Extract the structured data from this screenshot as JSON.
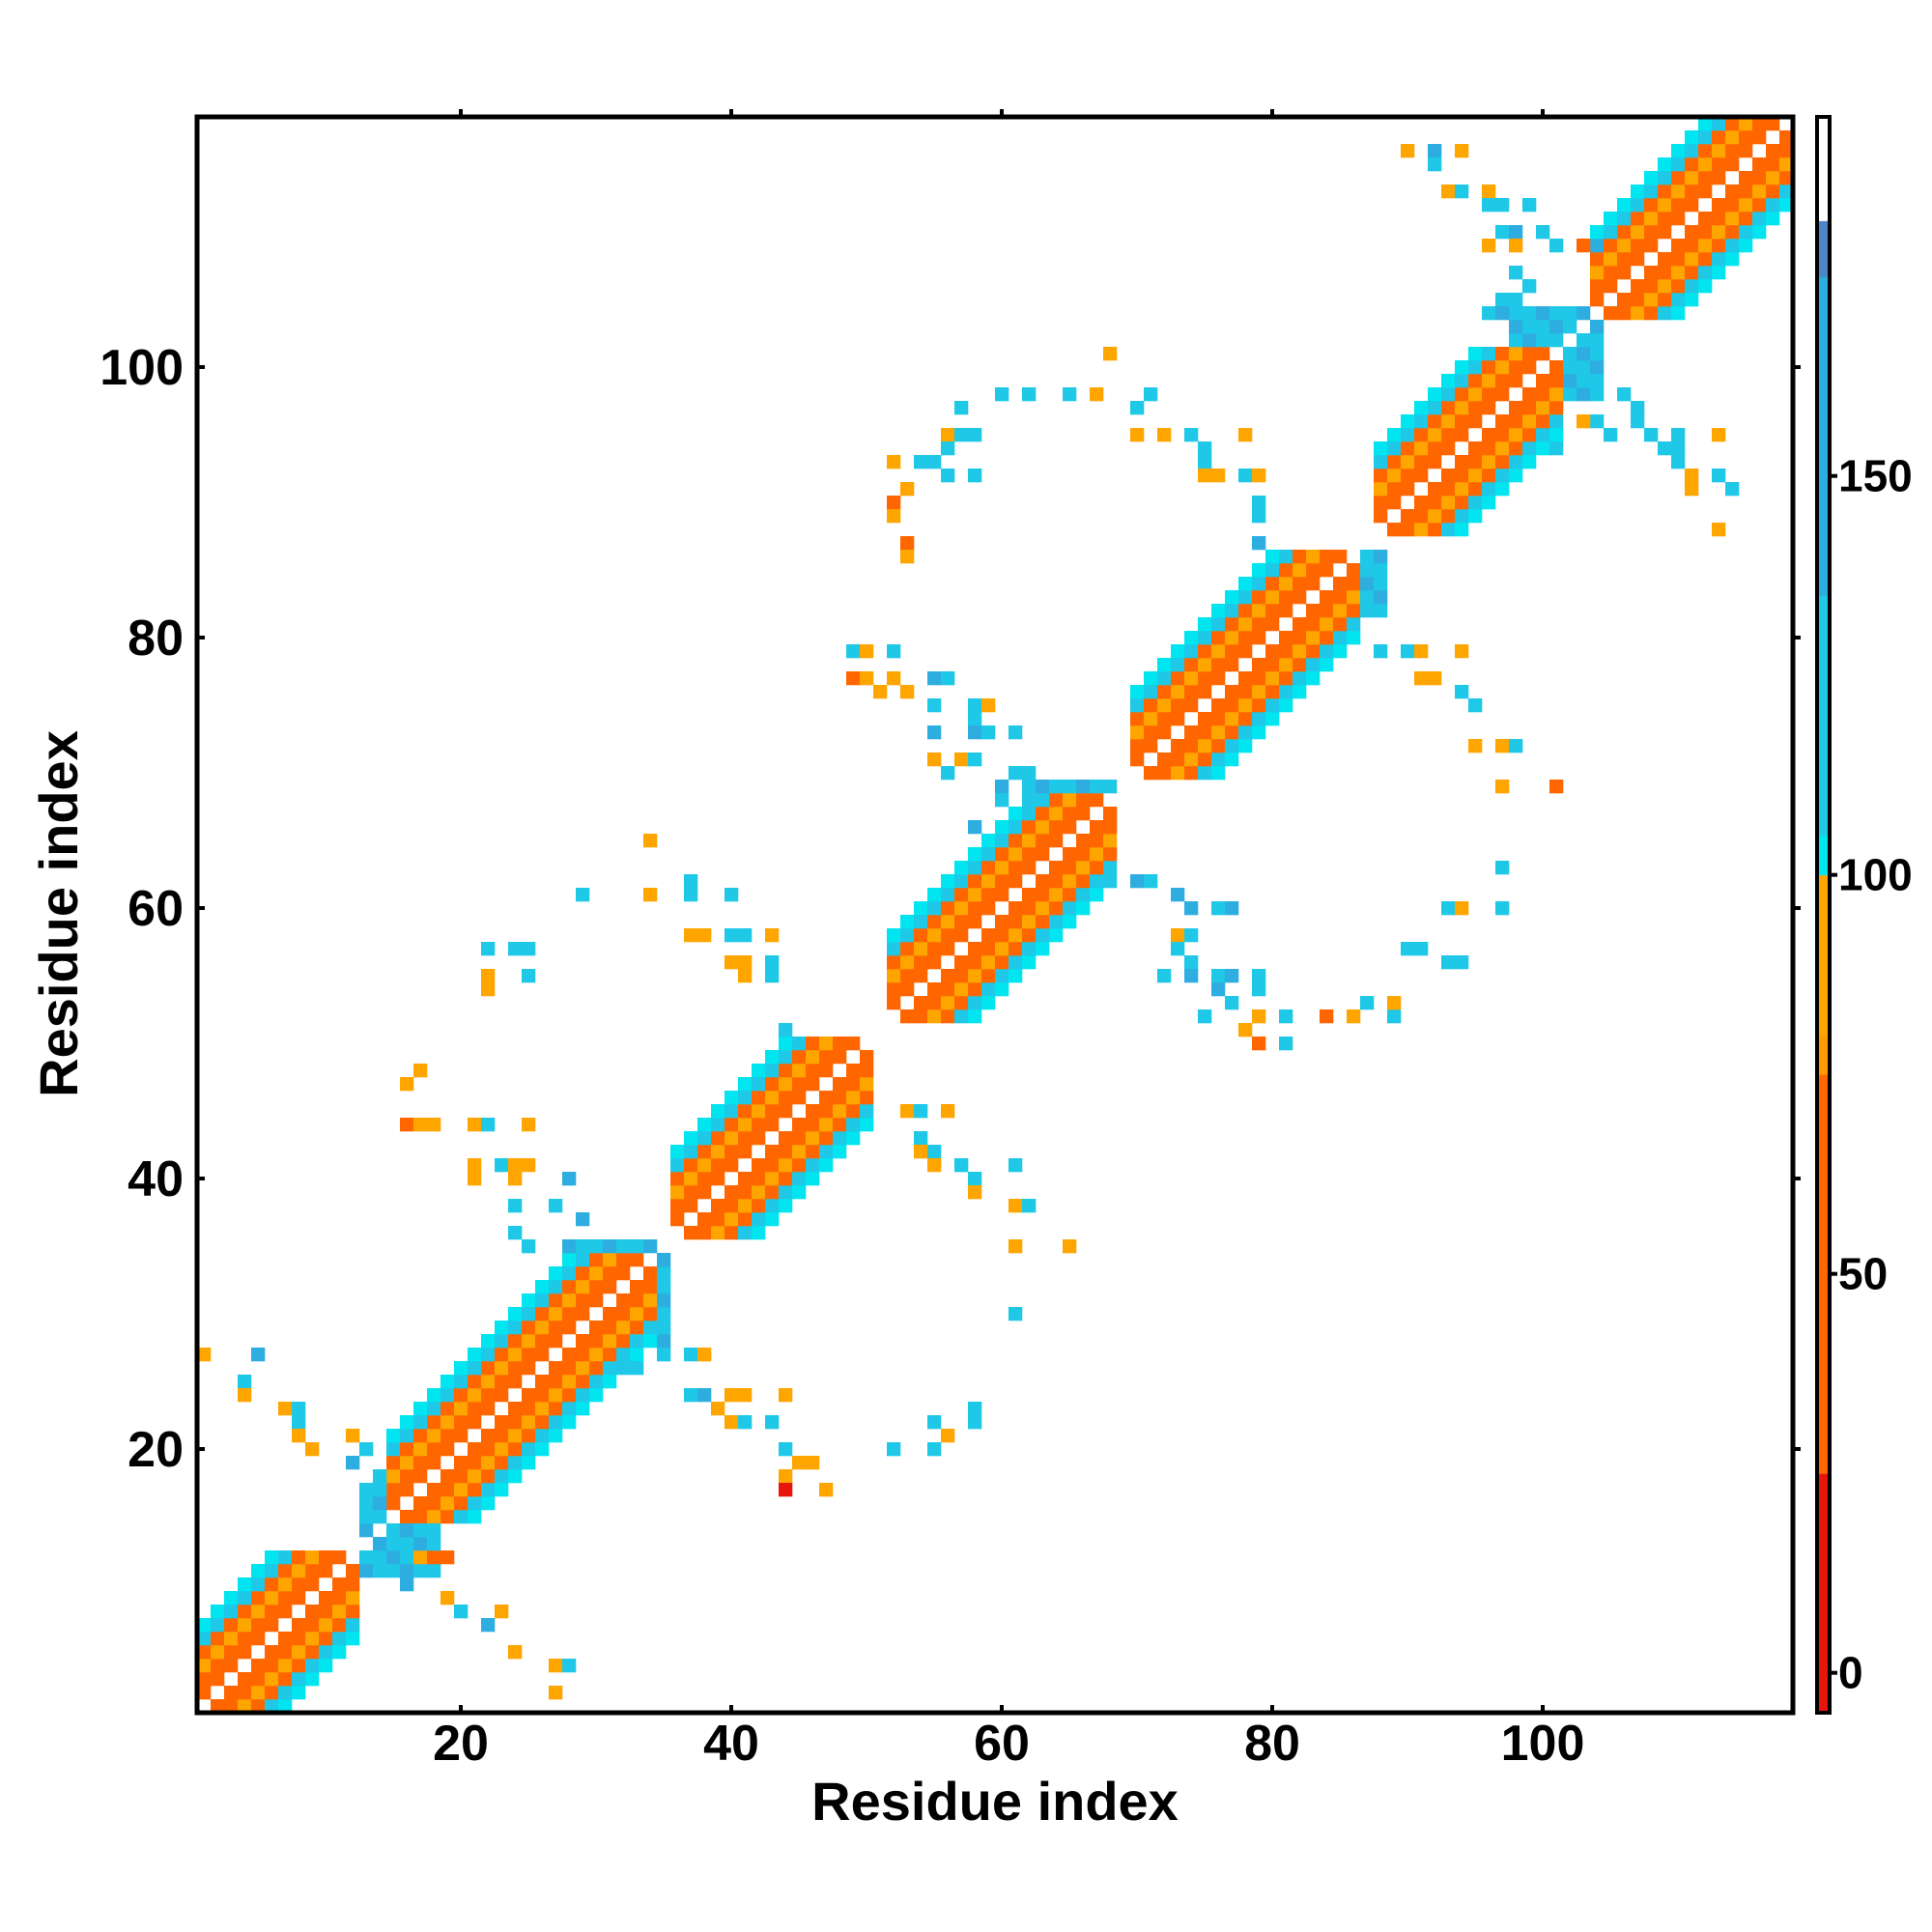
{
  "chart_data": {
    "type": "heatmap",
    "title": "",
    "xlabel": "Residue index",
    "ylabel": "Residue index",
    "xlim": [
      1,
      118
    ],
    "ylim": [
      1,
      118
    ],
    "x_ticks": [
      20,
      40,
      60,
      80,
      100
    ],
    "y_ticks": [
      20,
      40,
      60,
      80,
      100
    ],
    "x_tick_labels": [
      "20",
      "40",
      "60",
      "80",
      "100"
    ],
    "y_tick_labels": [
      "20",
      "40",
      "60",
      "80",
      "100"
    ],
    "grid": false,
    "colorbar": {
      "ticks": [
        0,
        50,
        100,
        150
      ],
      "tick_labels": [
        "0",
        "50",
        "100",
        "150"
      ],
      "range": [
        -5,
        195
      ],
      "bands": [
        {
          "from": -5,
          "to": 25,
          "color": "#e8150a"
        },
        {
          "from": 25,
          "to": 75,
          "color": "#ff6600"
        },
        {
          "from": 75,
          "to": 80,
          "color": "#ff9900"
        },
        {
          "from": 80,
          "to": 100,
          "color": "#ffa500"
        },
        {
          "from": 100,
          "to": 105,
          "color": "#00e5f0"
        },
        {
          "from": 105,
          "to": 135,
          "color": "#1ec8e6"
        },
        {
          "from": 135,
          "to": 175,
          "color": "#2eaee0"
        },
        {
          "from": 175,
          "to": 182,
          "color": "#4a86c8"
        },
        {
          "from": 182,
          "to": 195,
          "color": "#ffffff"
        }
      ]
    },
    "value_colors": {
      "low_red": "#e8150a",
      "orange": "#ff6600",
      "amber": "#ffa500",
      "cyan": "#00e5f0",
      "sky": "#1ec8e6",
      "steel": "#4a86c8"
    },
    "diagonal_band": {
      "range": [
        1,
        118
      ],
      "offsets": [
        {
          "d": 1,
          "value": 40
        },
        {
          "d": 2,
          "value": 30
        },
        {
          "d": 3,
          "value": 85
        },
        {
          "d": 4,
          "value": 55
        },
        {
          "d": 5,
          "value": 110
        },
        {
          "d": 6,
          "value": 102
        }
      ]
    },
    "segments": [
      {
        "start": 1,
        "end": 12
      },
      {
        "start": 15,
        "end": 34
      },
      {
        "start": 36,
        "end": 50
      },
      {
        "start": 52,
        "end": 68
      },
      {
        "start": 70,
        "end": 86
      },
      {
        "start": 88,
        "end": 101
      },
      {
        "start": 104,
        "end": 118
      }
    ],
    "blocks": [
      {
        "x": [
          13,
          18
        ],
        "y": [
          11,
          17
        ],
        "value": 120
      },
      {
        "x": [
          28,
          35
        ],
        "y": [
          28,
          35
        ],
        "value": 110
      },
      {
        "x": [
          46,
          50
        ],
        "y": [
          44,
          50
        ],
        "value": 100
      },
      {
        "x": [
          62,
          68
        ],
        "y": [
          62,
          69
        ],
        "value": 115
      },
      {
        "x": [
          83,
          88
        ],
        "y": [
          82,
          86
        ],
        "value": 105
      },
      {
        "x": [
          98,
          104
        ],
        "y": [
          98,
          104
        ],
        "value": 120
      }
    ],
    "points": [
      [
        1,
        27,
        80
      ],
      [
        5,
        27,
        140
      ],
      [
        4,
        25,
        120
      ],
      [
        4,
        24,
        90
      ],
      [
        7,
        23,
        80
      ],
      [
        8,
        23,
        110
      ],
      [
        8,
        22,
        120
      ],
      [
        8,
        21,
        85
      ],
      [
        9,
        20,
        85
      ],
      [
        12,
        21,
        80
      ],
      [
        13,
        20,
        120
      ],
      [
        12,
        19,
        140
      ],
      [
        14,
        18,
        105
      ],
      [
        13,
        17,
        120
      ],
      [
        17,
        12,
        85
      ],
      [
        18,
        12,
        40
      ],
      [
        19,
        12,
        40
      ],
      [
        17,
        11,
        110
      ],
      [
        16,
        10,
        140
      ],
      [
        19,
        9,
        80
      ],
      [
        20,
        8,
        110
      ],
      [
        23,
        8,
        85
      ],
      [
        22,
        7,
        140
      ],
      [
        24,
        5,
        80
      ],
      [
        27,
        4,
        85
      ],
      [
        28,
        4,
        120
      ],
      [
        27,
        2,
        80
      ],
      [
        17,
        48,
        80
      ],
      [
        16,
        47,
        80
      ],
      [
        16,
        44,
        30
      ],
      [
        17,
        44,
        80
      ],
      [
        18,
        44,
        80
      ],
      [
        21,
        44,
        80
      ],
      [
        22,
        44,
        110
      ],
      [
        25,
        44,
        80
      ],
      [
        21,
        41,
        80
      ],
      [
        23,
        41,
        120
      ],
      [
        24,
        41,
        80
      ],
      [
        25,
        41,
        80
      ],
      [
        21,
        40,
        80
      ],
      [
        24,
        40,
        80
      ],
      [
        28,
        40,
        140
      ],
      [
        24,
        38,
        120
      ],
      [
        27,
        38,
        120
      ],
      [
        29,
        37,
        140
      ],
      [
        24,
        36,
        120
      ],
      [
        25,
        35,
        120
      ],
      [
        32,
        30,
        40
      ],
      [
        35,
        27,
        120
      ],
      [
        37,
        27,
        120
      ],
      [
        38,
        27,
        85
      ],
      [
        32,
        26,
        120
      ],
      [
        33,
        26,
        120
      ],
      [
        37,
        24,
        120
      ],
      [
        38,
        24,
        140
      ],
      [
        40,
        24,
        80
      ],
      [
        41,
        24,
        80
      ],
      [
        44,
        24,
        85
      ],
      [
        39,
        23,
        80
      ],
      [
        40,
        22,
        80
      ],
      [
        41,
        22,
        110
      ],
      [
        43,
        22,
        120
      ],
      [
        44,
        20,
        110
      ],
      [
        45,
        19,
        80
      ],
      [
        46,
        19,
        80
      ],
      [
        44,
        18,
        80
      ],
      [
        44,
        17,
        20
      ],
      [
        47,
        17,
        80
      ],
      [
        52,
        20,
        120
      ],
      [
        55,
        20,
        120
      ],
      [
        56,
        21,
        80
      ],
      [
        55,
        22,
        110
      ],
      [
        58,
        23,
        120
      ],
      [
        58,
        22,
        120
      ],
      [
        22,
        57,
        110
      ],
      [
        25,
        57,
        110
      ],
      [
        24,
        57,
        110
      ],
      [
        22,
        55,
        80
      ],
      [
        25,
        55,
        110
      ],
      [
        22,
        54,
        90
      ],
      [
        29,
        61,
        120
      ],
      [
        34,
        61,
        80
      ],
      [
        37,
        62,
        120
      ],
      [
        37,
        61,
        110
      ],
      [
        40,
        61,
        120
      ],
      [
        34,
        65,
        80
      ],
      [
        37,
        58,
        80
      ],
      [
        38,
        58,
        80
      ],
      [
        40,
        58,
        120
      ],
      [
        41,
        58,
        110
      ],
      [
        43,
        58,
        80
      ],
      [
        40,
        56,
        80
      ],
      [
        41,
        56,
        80
      ],
      [
        41,
        55,
        80
      ],
      [
        43,
        56,
        110
      ],
      [
        43,
        55,
        110
      ],
      [
        44,
        51,
        110
      ],
      [
        53,
        45,
        85
      ],
      [
        54,
        45,
        110
      ],
      [
        56,
        45,
        80
      ],
      [
        54,
        43,
        110
      ],
      [
        55,
        42,
        110
      ],
      [
        54,
        42,
        80
      ],
      [
        55,
        41,
        80
      ],
      [
        57,
        41,
        120
      ],
      [
        58,
        40,
        110
      ],
      [
        61,
        41,
        110
      ],
      [
        58,
        39,
        80
      ],
      [
        61,
        38,
        80
      ],
      [
        62,
        38,
        120
      ],
      [
        61,
        35,
        80
      ],
      [
        65,
        35,
        80
      ],
      [
        61,
        30,
        120
      ],
      [
        49,
        79,
        110
      ],
      [
        50,
        79,
        85
      ],
      [
        52,
        79,
        110
      ],
      [
        49,
        77,
        30
      ],
      [
        50,
        77,
        80
      ],
      [
        52,
        77,
        80
      ],
      [
        55,
        77,
        140
      ],
      [
        56,
        77,
        120
      ],
      [
        51,
        76,
        85
      ],
      [
        53,
        76,
        80
      ],
      [
        55,
        75,
        120
      ],
      [
        58,
        75,
        120
      ],
      [
        59,
        75,
        80
      ],
      [
        58,
        74,
        120
      ],
      [
        61,
        73,
        110
      ],
      [
        55,
        73,
        140
      ],
      [
        58,
        73,
        140
      ],
      [
        59,
        73,
        120
      ],
      [
        55,
        71,
        80
      ],
      [
        57,
        71,
        80
      ],
      [
        58,
        71,
        120
      ],
      [
        56,
        70,
        120
      ],
      [
        60,
        69,
        140
      ],
      [
        61,
        70,
        120
      ],
      [
        62,
        70,
        110
      ],
      [
        60,
        68,
        120
      ],
      [
        62,
        68,
        110
      ],
      [
        58,
        66,
        140
      ],
      [
        52,
        93,
        80
      ],
      [
        54,
        93,
        120
      ],
      [
        55,
        93,
        110
      ],
      [
        53,
        91,
        85
      ],
      [
        52,
        90,
        30
      ],
      [
        52,
        89,
        80
      ],
      [
        53,
        87,
        30
      ],
      [
        53,
        86,
        80
      ],
      [
        56,
        95,
        80
      ],
      [
        57,
        95,
        110
      ],
      [
        58,
        95,
        110
      ],
      [
        56,
        94,
        110
      ],
      [
        56,
        92,
        120
      ],
      [
        58,
        92,
        110
      ],
      [
        57,
        97,
        120
      ],
      [
        60,
        98,
        110
      ],
      [
        62,
        98,
        110
      ],
      [
        65,
        98,
        110
      ],
      [
        68,
        101,
        80
      ],
      [
        67,
        98,
        80
      ],
      [
        70,
        97,
        110
      ],
      [
        71,
        98,
        110
      ],
      [
        70,
        95,
        85
      ],
      [
        72,
        95,
        85
      ],
      [
        74,
        95,
        110
      ],
      [
        75,
        94,
        110
      ],
      [
        78,
        95,
        85
      ],
      [
        75,
        93,
        110
      ],
      [
        75,
        92,
        80
      ],
      [
        76,
        92,
        85
      ],
      [
        78,
        92,
        120
      ],
      [
        79,
        92,
        80
      ],
      [
        79,
        90,
        120
      ],
      [
        79,
        89,
        120
      ],
      [
        79,
        87,
        140
      ],
      [
        67,
        62,
        120
      ],
      [
        68,
        62,
        120
      ],
      [
        70,
        62,
        140
      ],
      [
        71,
        62,
        120
      ],
      [
        73,
        61,
        140
      ],
      [
        74,
        60,
        140
      ],
      [
        76,
        60,
        110
      ],
      [
        77,
        60,
        140
      ],
      [
        73,
        58,
        80
      ],
      [
        74,
        58,
        120
      ],
      [
        73,
        57,
        120
      ],
      [
        74,
        56,
        120
      ],
      [
        72,
        55,
        120
      ],
      [
        74,
        55,
        140
      ],
      [
        76,
        55,
        120
      ],
      [
        77,
        55,
        140
      ],
      [
        79,
        55,
        110
      ],
      [
        79,
        54,
        120
      ],
      [
        77,
        53,
        120
      ],
      [
        79,
        52,
        85
      ],
      [
        78,
        51,
        80
      ],
      [
        79,
        50,
        30
      ],
      [
        81,
        50,
        110
      ],
      [
        81,
        52,
        110
      ],
      [
        75,
        52,
        120
      ],
      [
        76,
        54,
        140
      ],
      [
        84,
        52,
        30
      ],
      [
        86,
        52,
        80
      ],
      [
        87,
        53,
        110
      ],
      [
        89,
        52,
        110
      ],
      [
        89,
        53,
        85
      ],
      [
        90,
        57,
        110
      ],
      [
        91,
        57,
        110
      ],
      [
        93,
        56,
        110
      ],
      [
        94,
        56,
        110
      ],
      [
        93,
        60,
        110
      ],
      [
        94,
        60,
        80
      ],
      [
        97,
        60,
        110
      ],
      [
        97,
        63,
        110
      ],
      [
        88,
        79,
        110
      ],
      [
        90,
        79,
        110
      ],
      [
        91,
        79,
        85
      ],
      [
        94,
        79,
        80
      ],
      [
        91,
        77,
        80
      ],
      [
        92,
        77,
        80
      ],
      [
        94,
        76,
        120
      ],
      [
        95,
        75,
        110
      ],
      [
        95,
        72,
        80
      ],
      [
        97,
        72,
        80
      ],
      [
        98,
        72,
        110
      ],
      [
        97,
        69,
        80
      ],
      [
        101,
        69,
        30
      ],
      [
        90,
        116,
        80
      ],
      [
        92,
        116,
        140
      ],
      [
        94,
        116,
        80
      ],
      [
        92,
        115,
        110
      ],
      [
        93,
        113,
        80
      ],
      [
        94,
        113,
        120
      ],
      [
        96,
        113,
        80
      ],
      [
        96,
        112,
        110
      ],
      [
        97,
        112,
        120
      ],
      [
        99,
        112,
        110
      ],
      [
        97,
        110,
        110
      ],
      [
        98,
        110,
        140
      ],
      [
        100,
        110,
        110
      ],
      [
        96,
        109,
        85
      ],
      [
        98,
        109,
        80
      ],
      [
        101,
        109,
        120
      ],
      [
        103,
        109,
        30
      ],
      [
        104,
        109,
        140
      ],
      [
        98,
        107,
        120
      ],
      [
        99,
        106,
        110
      ],
      [
        97,
        105,
        120
      ],
      [
        98,
        105,
        120
      ],
      [
        96,
        104,
        110
      ],
      [
        97,
        104,
        140
      ],
      [
        106,
        98,
        110
      ],
      [
        107,
        97,
        120
      ],
      [
        107,
        96,
        110
      ],
      [
        105,
        95,
        110
      ],
      [
        108,
        95,
        110
      ],
      [
        110,
        95,
        110
      ],
      [
        113,
        95,
        85
      ],
      [
        109,
        94,
        110
      ],
      [
        110,
        94,
        110
      ],
      [
        110,
        93,
        110
      ],
      [
        111,
        92,
        80
      ],
      [
        113,
        92,
        110
      ],
      [
        111,
        91,
        80
      ],
      [
        114,
        91,
        110
      ],
      [
        113,
        88,
        80
      ],
      [
        104,
        96,
        120
      ],
      [
        103,
        96,
        80
      ],
      [
        101,
        94,
        110
      ]
    ]
  }
}
